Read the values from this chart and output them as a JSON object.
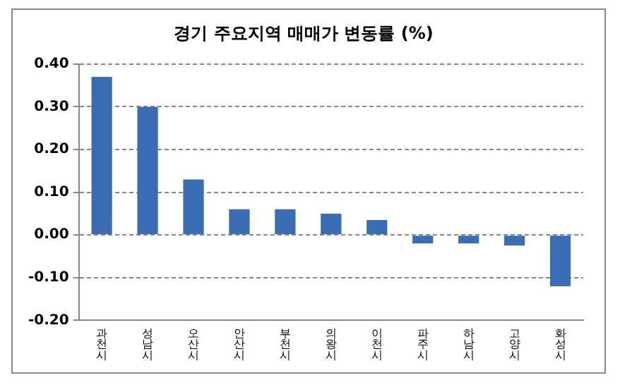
{
  "chart_data": {
    "type": "bar",
    "title": "경기 주요지역 매매가 변동률 (%)",
    "categories": [
      "과천시",
      "성남시",
      "오산시",
      "안산시",
      "부천시",
      "의왕시",
      "이천시",
      "파주시",
      "하남시",
      "고양시",
      "화성시"
    ],
    "values": [
      0.37,
      0.3,
      0.13,
      0.06,
      0.06,
      0.05,
      0.035,
      -0.02,
      -0.02,
      -0.025,
      -0.12
    ],
    "color": "#3a6db4",
    "ylim": [
      -0.2,
      0.4
    ],
    "yticks": [
      {
        "value": -0.2,
        "label": "-0.20"
      },
      {
        "value": -0.1,
        "label": "-0.10"
      },
      {
        "value": 0,
        "label": "0.00"
      },
      {
        "value": 0.1,
        "label": "0.10"
      },
      {
        "value": 0.2,
        "label": "0.20"
      },
      {
        "value": 0.3,
        "label": "0.30"
      },
      {
        "value": 0.4,
        "label": "0.40"
      }
    ],
    "grid": "y"
  }
}
